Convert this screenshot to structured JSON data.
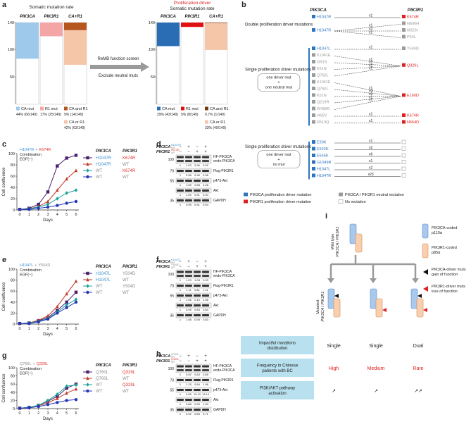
{
  "panel_labels": [
    "a",
    "b",
    "c",
    "d",
    "e",
    "f",
    "g",
    "h",
    "i"
  ],
  "a": {
    "left": {
      "title": "Somatic mutation rate",
      "columns": [
        "PIK3CA",
        "PIK3R1",
        "CA+R1"
      ],
      "ylim": [
        0,
        149
      ],
      "yticks": [
        149,
        100,
        50
      ],
      "legend": [
        {
          "name": "CA mut",
          "label": "44% (66/149)",
          "count": 66,
          "color": "#9ec9ea"
        },
        {
          "name": "R1 mut",
          "label": "17% (25/149)",
          "count": 25,
          "color": "#f4a6a6"
        },
        {
          "name": "CA and R1",
          "label": "9% (14/149)",
          "count": 14,
          "color": "#b5561f"
        },
        {
          "name": "CA or R1",
          "label": "42% (63/149)",
          "count": 63,
          "color": "#f6c6a8"
        }
      ]
    },
    "arrow_top": "ReMB function screen",
    "arrow_bottom": "Exclude neutral muts",
    "right": {
      "kicker": "Proliferation driver",
      "kicker_color": "#e02020",
      "title": "Somatic mutation rate",
      "columns": [
        "PIK3CA",
        "PIK3R1",
        "CA+R1"
      ],
      "ylim": [
        0,
        149
      ],
      "yticks": [
        149,
        100,
        50
      ],
      "legend": [
        {
          "name": "CA mut",
          "label": "29% (43/149)",
          "count": 43,
          "color": "#2a6db5"
        },
        {
          "name": "R1 mut",
          "label": "5% (8/149)",
          "count": 8,
          "color": "#e01010"
        },
        {
          "name": "CA and R1",
          "label": "0.7% (1/149)",
          "count": 1,
          "color": "#7a3a10"
        },
        {
          "name": "CA or R1",
          "label": "33% (49/149)",
          "count": 49,
          "color": "#f6c6a8"
        }
      ]
    }
  },
  "b": {
    "headers": [
      "PIK3CA",
      "PIK3R1"
    ],
    "kinds": {
      "ca_driver": "#2e75c0",
      "r1_driver": "#e02020",
      "neutral": "#9a9a9a",
      "none": "#ffffff"
    },
    "groups": [
      {
        "label": "Double proliferation driver mutations",
        "left": [
          {
            "label": "H1047R",
            "kind": "ca_driver"
          },
          {
            "label": "H1047R",
            "kind": "ca_driver"
          }
        ],
        "right": [
          {
            "label": "K674R",
            "kind": "r1_driver"
          },
          {
            "label": "N600H",
            "kind": "neutral"
          },
          {
            "label": "M326I",
            "kind": "neutral"
          },
          {
            "label": "P64L",
            "kind": "neutral"
          }
        ],
        "links": [
          [
            0,
            0,
            "x1"
          ],
          [
            1,
            1,
            "x1"
          ],
          [
            1,
            2,
            "x2"
          ],
          [
            1,
            3,
            "x1"
          ]
        ]
      },
      {
        "label": "Single proliferation driver mutations",
        "detail": [
          "one driver mut",
          "+",
          "one neutral mut"
        ],
        "left": [
          {
            "label": "H1047L",
            "kind": "ca_driver"
          },
          {
            "label": "K1041E",
            "kind": "neutral"
          },
          {
            "label": "I391S",
            "kind": "neutral"
          },
          {
            "label": "K51N",
            "kind": "neutral"
          },
          {
            "label": "Q760L",
            "kind": "neutral"
          },
          {
            "label": "K1041E",
            "kind": "neutral"
          },
          {
            "label": "Q760L",
            "kind": "neutral"
          },
          {
            "label": "K51N",
            "kind": "neutral"
          },
          {
            "label": "Q219R",
            "kind": "neutral"
          },
          {
            "label": "W499R",
            "kind": "neutral"
          },
          {
            "label": "I492V",
            "kind": "neutral"
          },
          {
            "label": "R519Q",
            "kind": "neutral"
          }
        ],
        "right": [
          {
            "label": "Y504D",
            "kind": "neutral"
          },
          {
            "label": "Q329L",
            "kind": "r1_driver"
          },
          {
            "label": "E160D",
            "kind": "r1_driver"
          },
          {
            "label": "K674R",
            "kind": "r1_driver"
          },
          {
            "label": "N564D",
            "kind": "r1_driver"
          }
        ],
        "links": [
          [
            0,
            0,
            "x1"
          ],
          [
            1,
            1,
            "x1"
          ],
          [
            2,
            1,
            "x1"
          ],
          [
            3,
            1,
            "x1"
          ],
          [
            4,
            1,
            "x1"
          ],
          [
            5,
            2,
            "x1"
          ],
          [
            6,
            2,
            "x4"
          ],
          [
            7,
            2,
            "x2"
          ],
          [
            8,
            2,
            "x1"
          ],
          [
            9,
            2,
            "x1"
          ],
          [
            10,
            3,
            "x1"
          ],
          [
            11,
            4,
            "x1"
          ]
        ]
      },
      {
        "label": "Single proliferation driver mutations",
        "detail": [
          "one driver mut",
          "+",
          "no mut"
        ],
        "left": [
          {
            "label": "E39K",
            "kind": "ca_driver"
          },
          {
            "label": "E542K",
            "kind": "ca_driver"
          },
          {
            "label": "E545K",
            "kind": "ca_driver"
          },
          {
            "label": "G1049R",
            "kind": "ca_driver"
          },
          {
            "label": "H1047L",
            "kind": "ca_driver"
          },
          {
            "label": "H1047R",
            "kind": "ca_driver"
          }
        ],
        "right": [
          {
            "kind": "none"
          },
          {
            "kind": "none"
          },
          {
            "kind": "none"
          },
          {
            "kind": "none"
          },
          {
            "kind": "none"
          },
          {
            "kind": "none"
          }
        ],
        "links": [
          [
            0,
            0,
            "x1"
          ],
          [
            1,
            1,
            "x2"
          ],
          [
            2,
            2,
            "x6"
          ],
          [
            3,
            3,
            "x1"
          ],
          [
            4,
            4,
            "x2"
          ],
          [
            5,
            5,
            "x23"
          ]
        ]
      }
    ],
    "legend": [
      {
        "kind": "ca_driver",
        "text": "PIK3CA proliferation driver mutation"
      },
      {
        "kind": "r1_driver",
        "text": "PIK3R1 proliferation driver mutation"
      },
      {
        "kind": "neutral",
        "text": "PIK3CA / PIK3R1 neutral mutation"
      },
      {
        "kind": "none",
        "text": "No mutation"
      }
    ]
  },
  "chart_data": [
    {
      "type": "line",
      "annotation": [
        {
          "text": "H1047R",
          "color": "#3a8fd0"
        },
        {
          "text": "+",
          "color": "#3a8fd0"
        },
        {
          "text": "K674R",
          "color": "#e0302a"
        }
      ],
      "annotation_lines": [
        "Combination",
        "EGF(−)"
      ],
      "ylabel": "Cell confluence",
      "xlabel": "Days",
      "x": [
        0,
        1,
        2,
        3,
        4,
        5,
        6
      ],
      "xlim": [
        0,
        6
      ],
      "xticks": [
        0,
        1,
        2,
        3,
        4,
        5,
        6
      ],
      "ylim": [
        0,
        100
      ],
      "yticks": [
        0,
        20,
        40,
        60,
        80,
        100
      ],
      "legend_headers": [
        "PIK3CA",
        "PIK3R1"
      ],
      "series": [
        {
          "pik3ca": "H1047R",
          "pik3ca_color": "#3a8fd0",
          "pik3r1": "K674R",
          "pik3r1_color": "#e0302a",
          "color": "#4b1e6e",
          "marker": "square",
          "values": [
            1,
            3,
            10,
            32,
            78,
            92,
            97
          ]
        },
        {
          "pik3ca": "H1047R",
          "pik3ca_color": "#3a8fd0",
          "pik3r1": "WT",
          "pik3r1_color": "#8a8a8a",
          "color": "#c0392b",
          "marker": "triangle",
          "values": [
            1,
            2,
            6,
            15,
            35,
            55,
            70
          ]
        },
        {
          "pik3ca": "WT",
          "pik3ca_color": "#8a8a8a",
          "pik3r1": "K674R",
          "pik3r1_color": "#e0302a",
          "color": "#1aa39a",
          "marker": "diamond",
          "values": [
            1,
            2,
            5,
            10,
            20,
            30,
            35
          ]
        },
        {
          "pik3ca": "WT",
          "pik3ca_color": "#8a8a8a",
          "pik3r1": "WT",
          "pik3r1_color": "#8a8a8a",
          "color": "#2437b8",
          "marker": "circle",
          "values": [
            1,
            1,
            3,
            5,
            8,
            12,
            15
          ]
        }
      ]
    },
    {
      "type": "line",
      "annotation": [
        {
          "text": "H1047L",
          "color": "#3a8fd0"
        },
        {
          "text": "+",
          "color": "#8a8a8a"
        },
        {
          "text": "Y504D",
          "color": "#8a8a8a"
        }
      ],
      "annotation_lines": [
        "Combination",
        "EGF(−)"
      ],
      "ylabel": "Cell confluence",
      "xlabel": "Days",
      "x": [
        0,
        1,
        2,
        3,
        4,
        5,
        6
      ],
      "xlim": [
        0,
        6
      ],
      "xticks": [
        0,
        1,
        2,
        3,
        4,
        5,
        6
      ],
      "ylim": [
        0,
        100
      ],
      "yticks": [
        0,
        20,
        40,
        60,
        80,
        100
      ],
      "legend_headers": [
        "PIK3CA",
        "PIK3R1"
      ],
      "series": [
        {
          "pik3ca": "H1047L",
          "pik3ca_color": "#3a8fd0",
          "pik3r1": "Y504D",
          "pik3r1_color": "#8a8a8a",
          "color": "#4b1e6e",
          "marker": "square",
          "values": [
            1,
            2,
            6,
            12,
            25,
            40,
            58
          ]
        },
        {
          "pik3ca": "H1047L",
          "pik3ca_color": "#3a8fd0",
          "pik3r1": "WT",
          "pik3r1_color": "#8a8a8a",
          "color": "#c0392b",
          "marker": "triangle",
          "values": [
            1,
            2,
            7,
            15,
            32,
            55,
            78
          ]
        },
        {
          "pik3ca": "WT",
          "pik3ca_color": "#8a8a8a",
          "pik3r1": "Y504D",
          "pik3r1_color": "#8a8a8a",
          "color": "#1aa39a",
          "marker": "diamond",
          "values": [
            1,
            2,
            5,
            10,
            22,
            35,
            45
          ]
        },
        {
          "pik3ca": "WT",
          "pik3ca_color": "#8a8a8a",
          "pik3r1": "WT",
          "pik3r1_color": "#8a8a8a",
          "color": "#2437b8",
          "marker": "circle",
          "values": [
            1,
            1,
            4,
            9,
            20,
            30,
            40
          ]
        }
      ]
    },
    {
      "type": "line",
      "annotation": [
        {
          "text": "Q760L",
          "color": "#8a8a8a"
        },
        {
          "text": "+",
          "color": "#8a8a8a"
        },
        {
          "text": "Q329L",
          "color": "#e0302a"
        }
      ],
      "annotation_lines": [
        "Combination",
        "EGF(−)"
      ],
      "ylabel": "Cell confluence",
      "xlabel": "Days",
      "x": [
        0,
        1,
        2,
        3,
        4,
        5,
        6
      ],
      "xlim": [
        0,
        6
      ],
      "xticks": [
        0,
        1,
        2,
        3,
        4,
        5,
        6
      ],
      "ylim": [
        0,
        100
      ],
      "yticks": [
        0,
        20,
        40,
        60,
        80,
        100
      ],
      "legend_headers": [
        "PIK3CA",
        "PIK3R1"
      ],
      "series": [
        {
          "pik3ca": "Q760L",
          "pik3ca_color": "#8a8a8a",
          "pik3r1": "Q329L",
          "pik3r1_color": "#e0302a",
          "color": "#4b1e6e",
          "marker": "square",
          "values": [
            1,
            3,
            8,
            18,
            30,
            50,
            60
          ]
        },
        {
          "pik3ca": "Q760L",
          "pik3ca_color": "#8a8a8a",
          "pik3r1": "WT",
          "pik3r1_color": "#8a8a8a",
          "color": "#c0392b",
          "marker": "triangle",
          "values": [
            1,
            3,
            7,
            14,
            25,
            38,
            48
          ]
        },
        {
          "pik3ca": "WT",
          "pik3ca_color": "#8a8a8a",
          "pik3r1": "Q329L",
          "pik3r1_color": "#e0302a",
          "color": "#1aa39a",
          "marker": "diamond",
          "values": [
            1,
            3,
            8,
            20,
            35,
            55,
            58
          ]
        },
        {
          "pik3ca": "WT",
          "pik3ca_color": "#8a8a8a",
          "pik3r1": "WT",
          "pik3r1_color": "#8a8a8a",
          "color": "#2437b8",
          "marker": "circle",
          "values": [
            1,
            2,
            5,
            10,
            15,
            20,
            22
          ]
        }
      ]
    }
  ],
  "d": {
    "header": [
      {
        "gene": "PIK3CA",
        "mut": "H1047R",
        "mut_color": "#3a8fd0",
        "wt": "WT",
        "signs": [
          "−",
          "+",
          "−",
          "+"
        ]
      },
      {
        "gene": "PIK3R1",
        "mut": "K674R",
        "mut_color": "#e0302a",
        "wt": "WT",
        "signs": [
          "−",
          "−",
          "+",
          "+"
        ]
      }
    ],
    "bands": [
      {
        "kda": "100",
        "labels": [
          "HF-PIK3CA",
          "endo-PIK3CA"
        ],
        "quant": [
          "1",
          "1.03",
          "0.96",
          "0.92"
        ]
      },
      {
        "kda": "70",
        "labels": [
          "Flag-PIK3R1"
        ],
        "quant": [
          "1",
          "0.96",
          "0.96",
          "0.98"
        ]
      },
      {
        "kda": "55",
        "labels": [
          "p473-Akt"
        ],
        "quant": [
          "1",
          "1.69",
          "2.68",
          "3.28"
        ]
      },
      {
        "labels": [
          "Akt"
        ],
        "quant": [
          "1",
          "1.00",
          "0.91",
          "0.94"
        ]
      },
      {
        "kda": "35",
        "labels": [
          "GAPDH"
        ],
        "quant": [
          "1",
          "0.99",
          "0.91",
          "0.94"
        ]
      }
    ]
  },
  "f": {
    "header": [
      {
        "gene": "PIK3CA",
        "mut": "H1047L",
        "mut_color": "#3a8fd0",
        "wt": "WT",
        "signs": [
          "−",
          "+",
          "−",
          "+"
        ]
      },
      {
        "gene": "PIK3R1",
        "mut": "Y504D",
        "mut_color": "#8a8a8a",
        "wt": "WT",
        "signs": [
          "−",
          "−",
          "+",
          "+"
        ]
      }
    ],
    "bands": [
      {
        "kda": "100",
        "labels": [
          "HF-PIK3CA",
          "endo-PIK3CA"
        ],
        "quant": [
          "1",
          "1.03",
          "1.08",
          "0.93"
        ]
      },
      {
        "kda": "70",
        "labels": [
          "Flag-PIK3R1"
        ],
        "quant": [
          "1",
          "1.11",
          "0.81",
          "1.11"
        ]
      },
      {
        "kda": "55",
        "labels": [
          "p473-Akt"
        ],
        "quant": [
          "1",
          "1.06",
          "2.10",
          "1.06"
        ]
      },
      {
        "labels": [
          "Akt"
        ],
        "quant": [
          "1",
          "0.95",
          "0.83",
          "0.84"
        ]
      },
      {
        "kda": "35",
        "labels": [
          "GAPDH"
        ],
        "quant": [
          "1",
          "1.06",
          "0.94",
          "0.83"
        ]
      }
    ]
  },
  "h": {
    "header": [
      {
        "gene": "PIK3CA",
        "mut": "Q760L",
        "mut_color": "#8a8a8a",
        "wt": "WT",
        "signs": [
          "−",
          "+",
          "−",
          "+"
        ]
      },
      {
        "gene": "PIK3R1",
        "mut": "Q329L",
        "mut_color": "#e0302a",
        "wt": "WT",
        "signs": [
          "−",
          "−",
          "+",
          "+"
        ]
      }
    ],
    "bands": [
      {
        "kda": "100",
        "labels": [
          "HF-PIK3CA",
          "endo-PIK3CA"
        ],
        "quant": [
          "1",
          "0.92",
          "0.63",
          "0.65"
        ]
      },
      {
        "kda": "70",
        "labels": [
          "Flag-PIK3R1"
        ],
        "quant": [
          "1",
          "1.15",
          "0.84",
          "1.06"
        ]
      },
      {
        "kda": "55",
        "labels": [
          "p473-Akt"
        ],
        "quant": [
          "1",
          "9.55",
          "15.10",
          "13.14"
        ]
      },
      {
        "labels": [
          "Akt"
        ],
        "quant": [
          "1",
          "0.88",
          "0.99",
          "1.09"
        ]
      },
      {
        "kda": "35",
        "labels": [
          "GAPDH"
        ],
        "quant": [
          "1",
          "0.92",
          "0.85",
          "0.71"
        ]
      }
    ]
  },
  "i": {
    "wild_type": [
      "Wild type",
      "PIK3CA / PIK3R1"
    ],
    "mutated": [
      "Mutated-",
      "PIK3CA / PIK3R1"
    ],
    "legend": [
      [
        "PIK3CA-coded",
        "p110α"
      ],
      [
        "PIK3R1-coded",
        "p85α"
      ],
      [
        "PIK3CA-driver muts",
        "gain of function"
      ],
      [
        "PIK3R1-driver muts",
        "loss of function"
      ]
    ],
    "table": [
      {
        "label": [
          "Impactful mutations",
          "distribution"
        ],
        "cells": [
          "Single",
          "Single",
          "Dual"
        ]
      },
      {
        "label": [
          "Frequency in Chinese",
          "patients with BC"
        ],
        "cells": [
          "High",
          "Medium",
          "Rare"
        ],
        "color": "#e02020"
      },
      {
        "label": [
          "PI3K/AKT pathway",
          "activation"
        ],
        "cells": [
          "↗",
          "↗",
          "↗↗"
        ]
      }
    ]
  }
}
